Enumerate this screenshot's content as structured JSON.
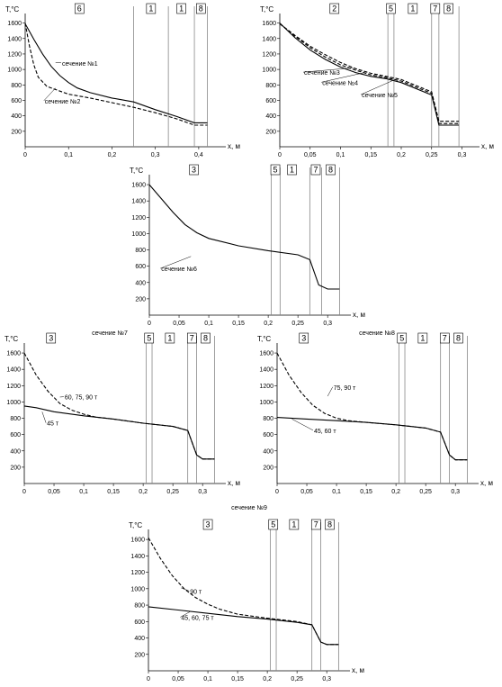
{
  "chart_data": [
    {
      "type": "line",
      "title": "",
      "xlabel": "x, м",
      "ylabel": "T,°C",
      "xlim": [
        0,
        0.45
      ],
      "ylim": [
        0,
        1700
      ],
      "x_ticks": [
        "0",
        "0,1",
        "0,2",
        "0,3",
        "0,4"
      ],
      "y_ticks": [
        "200",
        "400",
        "600",
        "800",
        "1000",
        "1200",
        "1400",
        "1600"
      ],
      "boundaries": [
        0.25,
        0.33,
        0.39,
        0.42
      ],
      "zones": [
        {
          "label": "6",
          "x": 0.125
        },
        {
          "label": "1",
          "x": 0.29
        },
        {
          "label": "1",
          "x": 0.36
        },
        {
          "label": "8",
          "x": 0.405
        }
      ],
      "series": [
        {
          "name": "сечение №1",
          "style": "solid",
          "x": [
            0,
            0.02,
            0.04,
            0.06,
            0.08,
            0.1,
            0.12,
            0.15,
            0.2,
            0.25,
            0.3,
            0.35,
            0.39,
            0.42
          ],
          "y": [
            1590,
            1390,
            1200,
            1040,
            920,
            830,
            760,
            700,
            630,
            580,
            480,
            390,
            310,
            310
          ]
        },
        {
          "name": "сечение №2",
          "style": "dashed",
          "x": [
            0,
            0.01,
            0.02,
            0.03,
            0.05,
            0.08,
            0.1,
            0.15,
            0.2,
            0.25,
            0.3,
            0.35,
            0.39,
            0.42
          ],
          "y": [
            1600,
            1300,
            1060,
            900,
            780,
            720,
            680,
            630,
            570,
            510,
            440,
            360,
            280,
            280
          ]
        }
      ],
      "annotations": [
        "сечение №1",
        "сечение №2"
      ]
    },
    {
      "type": "line",
      "title": "",
      "xlabel": "x, м",
      "ylabel": "T,°C",
      "xlim": [
        0,
        0.32
      ],
      "ylim": [
        0,
        1700
      ],
      "x_ticks": [
        "0",
        "0,05",
        "0,1",
        "0,15",
        "0,2",
        "0,25",
        "0,3"
      ],
      "y_ticks": [
        "200",
        "400",
        "600",
        "800",
        "1000",
        "1200",
        "1400",
        "1600"
      ],
      "boundaries": [
        0.178,
        0.188,
        0.25,
        0.262,
        0.295
      ],
      "zones": [
        {
          "label": "2",
          "x": 0.09
        },
        {
          "label": "5",
          "x": 0.183
        },
        {
          "label": "1",
          "x": 0.219
        },
        {
          "label": "7",
          "x": 0.256
        },
        {
          "label": "8",
          "x": 0.278
        }
      ],
      "series": [
        {
          "name": "сечение №3",
          "style": "dashed",
          "x": [
            0,
            0.025,
            0.05,
            0.075,
            0.1,
            0.125,
            0.15,
            0.175,
            0.2,
            0.25,
            0.262,
            0.295
          ],
          "y": [
            1590,
            1440,
            1300,
            1190,
            1090,
            1010,
            950,
            910,
            870,
            710,
            330,
            330
          ]
        },
        {
          "name": "сечение №4",
          "style": "solid",
          "x": [
            0,
            0.025,
            0.05,
            0.075,
            0.1,
            0.125,
            0.15,
            0.175,
            0.2,
            0.25,
            0.262,
            0.295
          ],
          "y": [
            1600,
            1410,
            1250,
            1130,
            1030,
            960,
            910,
            880,
            830,
            670,
            280,
            280
          ]
        },
        {
          "name": "сечение №5",
          "style": "dashed",
          "x": [
            0,
            0.025,
            0.05,
            0.075,
            0.1,
            0.125,
            0.15,
            0.175,
            0.2,
            0.25,
            0.262,
            0.295
          ],
          "y": [
            1590,
            1430,
            1280,
            1160,
            1060,
            990,
            930,
            895,
            850,
            690,
            300,
            300
          ]
        }
      ],
      "annotations": [
        "сечение №3",
        "сечение №4",
        "сечение №5"
      ]
    },
    {
      "type": "line",
      "title": "",
      "xlabel": "x, м",
      "ylabel": "T,°C",
      "xlim": [
        0,
        0.33
      ],
      "ylim": [
        0,
        1700
      ],
      "x_ticks": [
        "0",
        "0,05",
        "0,1",
        "0,15",
        "0,2",
        "0,25",
        "0,3"
      ],
      "y_ticks": [
        "200",
        "400",
        "600",
        "800",
        "1000",
        "1200",
        "1400",
        "1600"
      ],
      "boundaries": [
        0.205,
        0.22,
        0.27,
        0.29,
        0.32
      ],
      "zones": [
        {
          "label": "3",
          "x": 0.075
        },
        {
          "label": "5",
          "x": 0.212
        },
        {
          "label": "1",
          "x": 0.24
        },
        {
          "label": "7",
          "x": 0.28
        },
        {
          "label": "8",
          "x": 0.305
        }
      ],
      "series": [
        {
          "name": "сечение №6",
          "style": "solid",
          "x": [
            0,
            0.02,
            0.04,
            0.06,
            0.08,
            0.1,
            0.15,
            0.2,
            0.25,
            0.27,
            0.285,
            0.3,
            0.32
          ],
          "y": [
            1600,
            1430,
            1260,
            1110,
            1010,
            940,
            850,
            790,
            740,
            680,
            370,
            320,
            320
          ]
        }
      ],
      "annotations": [
        "сечение №6"
      ]
    },
    {
      "type": "line",
      "title": "сечение №7",
      "xlabel": "x, м",
      "ylabel": "T,°C",
      "xlim": [
        0,
        0.33
      ],
      "ylim": [
        0,
        1700
      ],
      "x_ticks": [
        "0",
        "0,05",
        "0,1",
        "0,15",
        "0,2",
        "0,25",
        "0,3"
      ],
      "y_ticks": [
        "200",
        "400",
        "600",
        "800",
        "1000",
        "1200",
        "1400",
        "1600"
      ],
      "boundaries": [
        0.205,
        0.215,
        0.275,
        0.29,
        0.32
      ],
      "zones": [
        {
          "label": "3",
          "x": 0.045
        },
        {
          "label": "5",
          "x": 0.21
        },
        {
          "label": "1",
          "x": 0.245
        },
        {
          "label": "7",
          "x": 0.282
        },
        {
          "label": "8",
          "x": 0.305
        }
      ],
      "series": [
        {
          "name": "60, 75, 90 т",
          "style": "dashed",
          "x": [
            0,
            0.02,
            0.04,
            0.06,
            0.08,
            0.1,
            0.12,
            0.15,
            0.2,
            0.25,
            0.275,
            0.29,
            0.3,
            0.32
          ],
          "y": [
            1600,
            1330,
            1130,
            980,
            900,
            850,
            815,
            790,
            740,
            700,
            650,
            350,
            300,
            300
          ]
        },
        {
          "name": "45 т",
          "style": "solid",
          "x": [
            0,
            0.02,
            0.05,
            0.1,
            0.15,
            0.2,
            0.25,
            0.275,
            0.29,
            0.3,
            0.32
          ],
          "y": [
            950,
            930,
            880,
            830,
            790,
            740,
            700,
            650,
            350,
            300,
            300
          ]
        }
      ],
      "annotations": [
        "60, 75, 90 т",
        "45 т"
      ]
    },
    {
      "type": "line",
      "title": "сечение №8",
      "xlabel": "x, м",
      "ylabel": "T,°C",
      "xlim": [
        0,
        0.33
      ],
      "ylim": [
        0,
        1700
      ],
      "x_ticks": [
        "0",
        "0,05",
        "0,1",
        "0,15",
        "0,2",
        "0,25",
        "0,3"
      ],
      "y_ticks": [
        "200",
        "400",
        "600",
        "800",
        "1000",
        "1200",
        "1400",
        "1600"
      ],
      "boundaries": [
        0.205,
        0.215,
        0.275,
        0.29,
        0.32
      ],
      "zones": [
        {
          "label": "3",
          "x": 0.045
        },
        {
          "label": "5",
          "x": 0.21
        },
        {
          "label": "1",
          "x": 0.245
        },
        {
          "label": "7",
          "x": 0.282
        },
        {
          "label": "8",
          "x": 0.305
        }
      ],
      "series": [
        {
          "name": "75, 90 т",
          "style": "dashed",
          "x": [
            0,
            0.02,
            0.04,
            0.06,
            0.08,
            0.1,
            0.12,
            0.15,
            0.2,
            0.25,
            0.275,
            0.29,
            0.3,
            0.32
          ],
          "y": [
            1600,
            1330,
            1120,
            960,
            860,
            800,
            770,
            750,
            720,
            680,
            630,
            350,
            290,
            290
          ]
        },
        {
          "name": "45, 60 т",
          "style": "solid",
          "x": [
            0,
            0.05,
            0.1,
            0.15,
            0.2,
            0.25,
            0.275,
            0.29,
            0.3,
            0.32
          ],
          "y": [
            810,
            790,
            770,
            750,
            720,
            680,
            630,
            350,
            290,
            290
          ]
        }
      ],
      "annotations": [
        "75, 90 т",
        "45, 60 т"
      ]
    },
    {
      "type": "line",
      "title": "сечение №9",
      "xlabel": "x, м",
      "ylabel": "T,°C",
      "xlim": [
        0,
        0.33
      ],
      "ylim": [
        0,
        1700
      ],
      "x_ticks": [
        "0",
        "0,05",
        "0,1",
        "0,15",
        "0,2",
        "0,25",
        "0,3"
      ],
      "y_ticks": [
        "200",
        "400",
        "600",
        "800",
        "1000",
        "1200",
        "1400",
        "1600"
      ],
      "boundaries": [
        0.205,
        0.215,
        0.275,
        0.29,
        0.32
      ],
      "zones": [
        {
          "label": "3",
          "x": 0.1
        },
        {
          "label": "5",
          "x": 0.21
        },
        {
          "label": "1",
          "x": 0.245
        },
        {
          "label": "7",
          "x": 0.282
        },
        {
          "label": "8",
          "x": 0.305
        }
      ],
      "series": [
        {
          "name": "90 т",
          "style": "dashed",
          "x": [
            0,
            0.02,
            0.04,
            0.06,
            0.08,
            0.1,
            0.12,
            0.15,
            0.2,
            0.25,
            0.275,
            0.29,
            0.3,
            0.32
          ],
          "y": [
            1620,
            1370,
            1160,
            1000,
            890,
            810,
            750,
            690,
            640,
            600,
            560,
            350,
            320,
            320
          ]
        },
        {
          "name": "45, 60, 75 т",
          "style": "solid",
          "x": [
            0,
            0.05,
            0.1,
            0.15,
            0.2,
            0.25,
            0.275,
            0.29,
            0.3,
            0.32
          ],
          "y": [
            780,
            740,
            700,
            660,
            630,
            590,
            560,
            350,
            320,
            320
          ]
        }
      ],
      "annotations": [
        "90 т",
        "45, 60, 75 т"
      ]
    }
  ]
}
